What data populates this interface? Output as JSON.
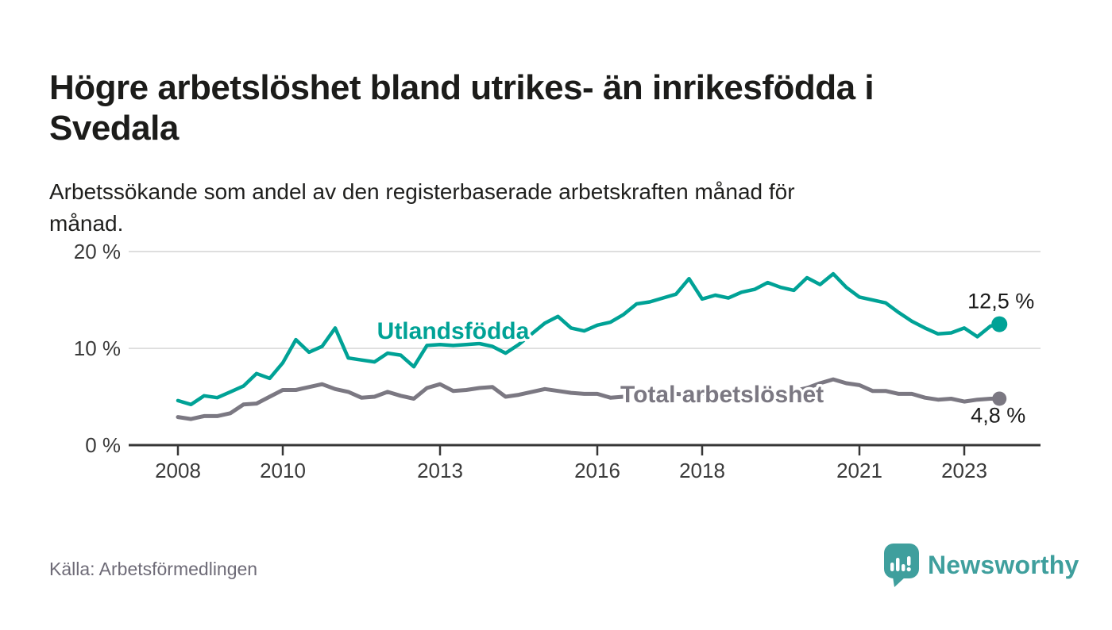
{
  "header": {
    "title_lines": [
      "Högre arbetslöshet bland utrikes- än inrikesfödda i",
      "Svedala"
    ],
    "subtitle_lines": [
      "Arbetssökande som andel av den registerbaserade arbetskraften månad för",
      "månad."
    ]
  },
  "source": {
    "label": "Källa: Arbetsförmedlingen"
  },
  "branding": {
    "name": "Newsworthy",
    "icon": "newsworthy-speech-bubble-chart-icon",
    "color": "#3f9f9d"
  },
  "colors": {
    "series_foreign": "#00a296",
    "series_total": "#7b7882",
    "grid": "#d9d9d9",
    "axis": "#363636",
    "axis_text": "#3a3a3a",
    "value_label_text": "#1b1b1b",
    "background": "#ffffff"
  },
  "chart_data": {
    "type": "line",
    "title": "Högre arbetslöshet bland utrikes- än inrikesfödda i Svedala",
    "subtitle": "Arbetssökande som andel av den registerbaserade arbetskraften månad för månad.",
    "unit": "%",
    "grid": true,
    "legend_position": "inline-labels",
    "x_axis": {
      "ticks": [
        2008,
        2010,
        2013,
        2016,
        2018,
        2021,
        2023
      ],
      "range": [
        2007.06,
        2024.45
      ]
    },
    "y_axis": {
      "ticks": [
        {
          "value": 0,
          "label": "0 %"
        },
        {
          "value": 10,
          "label": "10 %"
        },
        {
          "value": 20,
          "label": "20 %"
        }
      ],
      "range": [
        0,
        21
      ]
    },
    "x": [
      2008.0,
      2008.25,
      2008.5,
      2008.75,
      2009.0,
      2009.25,
      2009.5,
      2009.75,
      2010.0,
      2010.25,
      2010.5,
      2010.75,
      2011.0,
      2011.25,
      2011.5,
      2011.75,
      2012.0,
      2012.25,
      2012.5,
      2012.75,
      2013.0,
      2013.25,
      2013.5,
      2013.75,
      2014.0,
      2014.25,
      2014.5,
      2014.75,
      2015.0,
      2015.25,
      2015.5,
      2015.75,
      2016.0,
      2016.25,
      2016.5,
      2016.75,
      2017.0,
      2017.25,
      2017.5,
      2017.75,
      2018.0,
      2018.25,
      2018.5,
      2018.75,
      2019.0,
      2019.25,
      2019.5,
      2019.75,
      2020.0,
      2020.25,
      2020.5,
      2020.75,
      2021.0,
      2021.25,
      2021.5,
      2021.75,
      2022.0,
      2022.25,
      2022.5,
      2022.75,
      2023.0,
      2023.25,
      2023.5,
      2023.67
    ],
    "series": [
      {
        "name": "Utlandsfödda",
        "color": "#00a296",
        "end_label": "12,5 %",
        "end_value": 12.5,
        "label_anchor": {
          "x": 2013.25,
          "y": 11.8
        },
        "values": [
          4.6,
          4.2,
          5.1,
          4.9,
          5.5,
          6.1,
          7.4,
          6.9,
          8.5,
          10.9,
          9.6,
          10.2,
          12.1,
          9.0,
          8.8,
          8.6,
          9.5,
          9.3,
          8.1,
          10.3,
          10.4,
          10.3,
          10.4,
          10.5,
          10.2,
          9.5,
          10.4,
          11.5,
          12.6,
          13.3,
          12.1,
          11.8,
          12.4,
          12.7,
          13.5,
          14.6,
          14.8,
          15.2,
          15.6,
          17.2,
          15.1,
          15.5,
          15.2,
          15.8,
          16.1,
          16.8,
          16.3,
          16.0,
          17.3,
          16.6,
          17.7,
          16.3,
          15.3,
          15.0,
          14.7,
          13.7,
          12.8,
          12.1,
          11.5,
          11.6,
          12.1,
          11.2,
          12.3,
          12.5
        ]
      },
      {
        "name": "Total arbetslöshet",
        "color": "#7b7882",
        "end_label": "4,8 %",
        "end_value": 4.8,
        "label_anchor": {
          "x": 2018.38,
          "y": 5.25
        },
        "values": [
          2.9,
          2.7,
          3.0,
          3.0,
          3.3,
          4.2,
          4.3,
          5.0,
          5.7,
          5.7,
          6.0,
          6.3,
          5.8,
          5.5,
          4.9,
          5.0,
          5.5,
          5.1,
          4.8,
          5.9,
          6.3,
          5.6,
          5.7,
          5.9,
          6.0,
          5.0,
          5.2,
          5.5,
          5.8,
          5.6,
          5.4,
          5.3,
          5.3,
          4.9,
          5.0,
          5.1,
          5.2,
          5.1,
          5.3,
          5.2,
          5.3,
          5.2,
          5.4,
          5.3,
          5.4,
          5.5,
          5.4,
          5.6,
          5.9,
          6.4,
          6.8,
          6.4,
          6.2,
          5.6,
          5.6,
          5.3,
          5.3,
          4.9,
          4.7,
          4.8,
          4.5,
          4.7,
          4.8,
          4.8
        ]
      }
    ]
  }
}
